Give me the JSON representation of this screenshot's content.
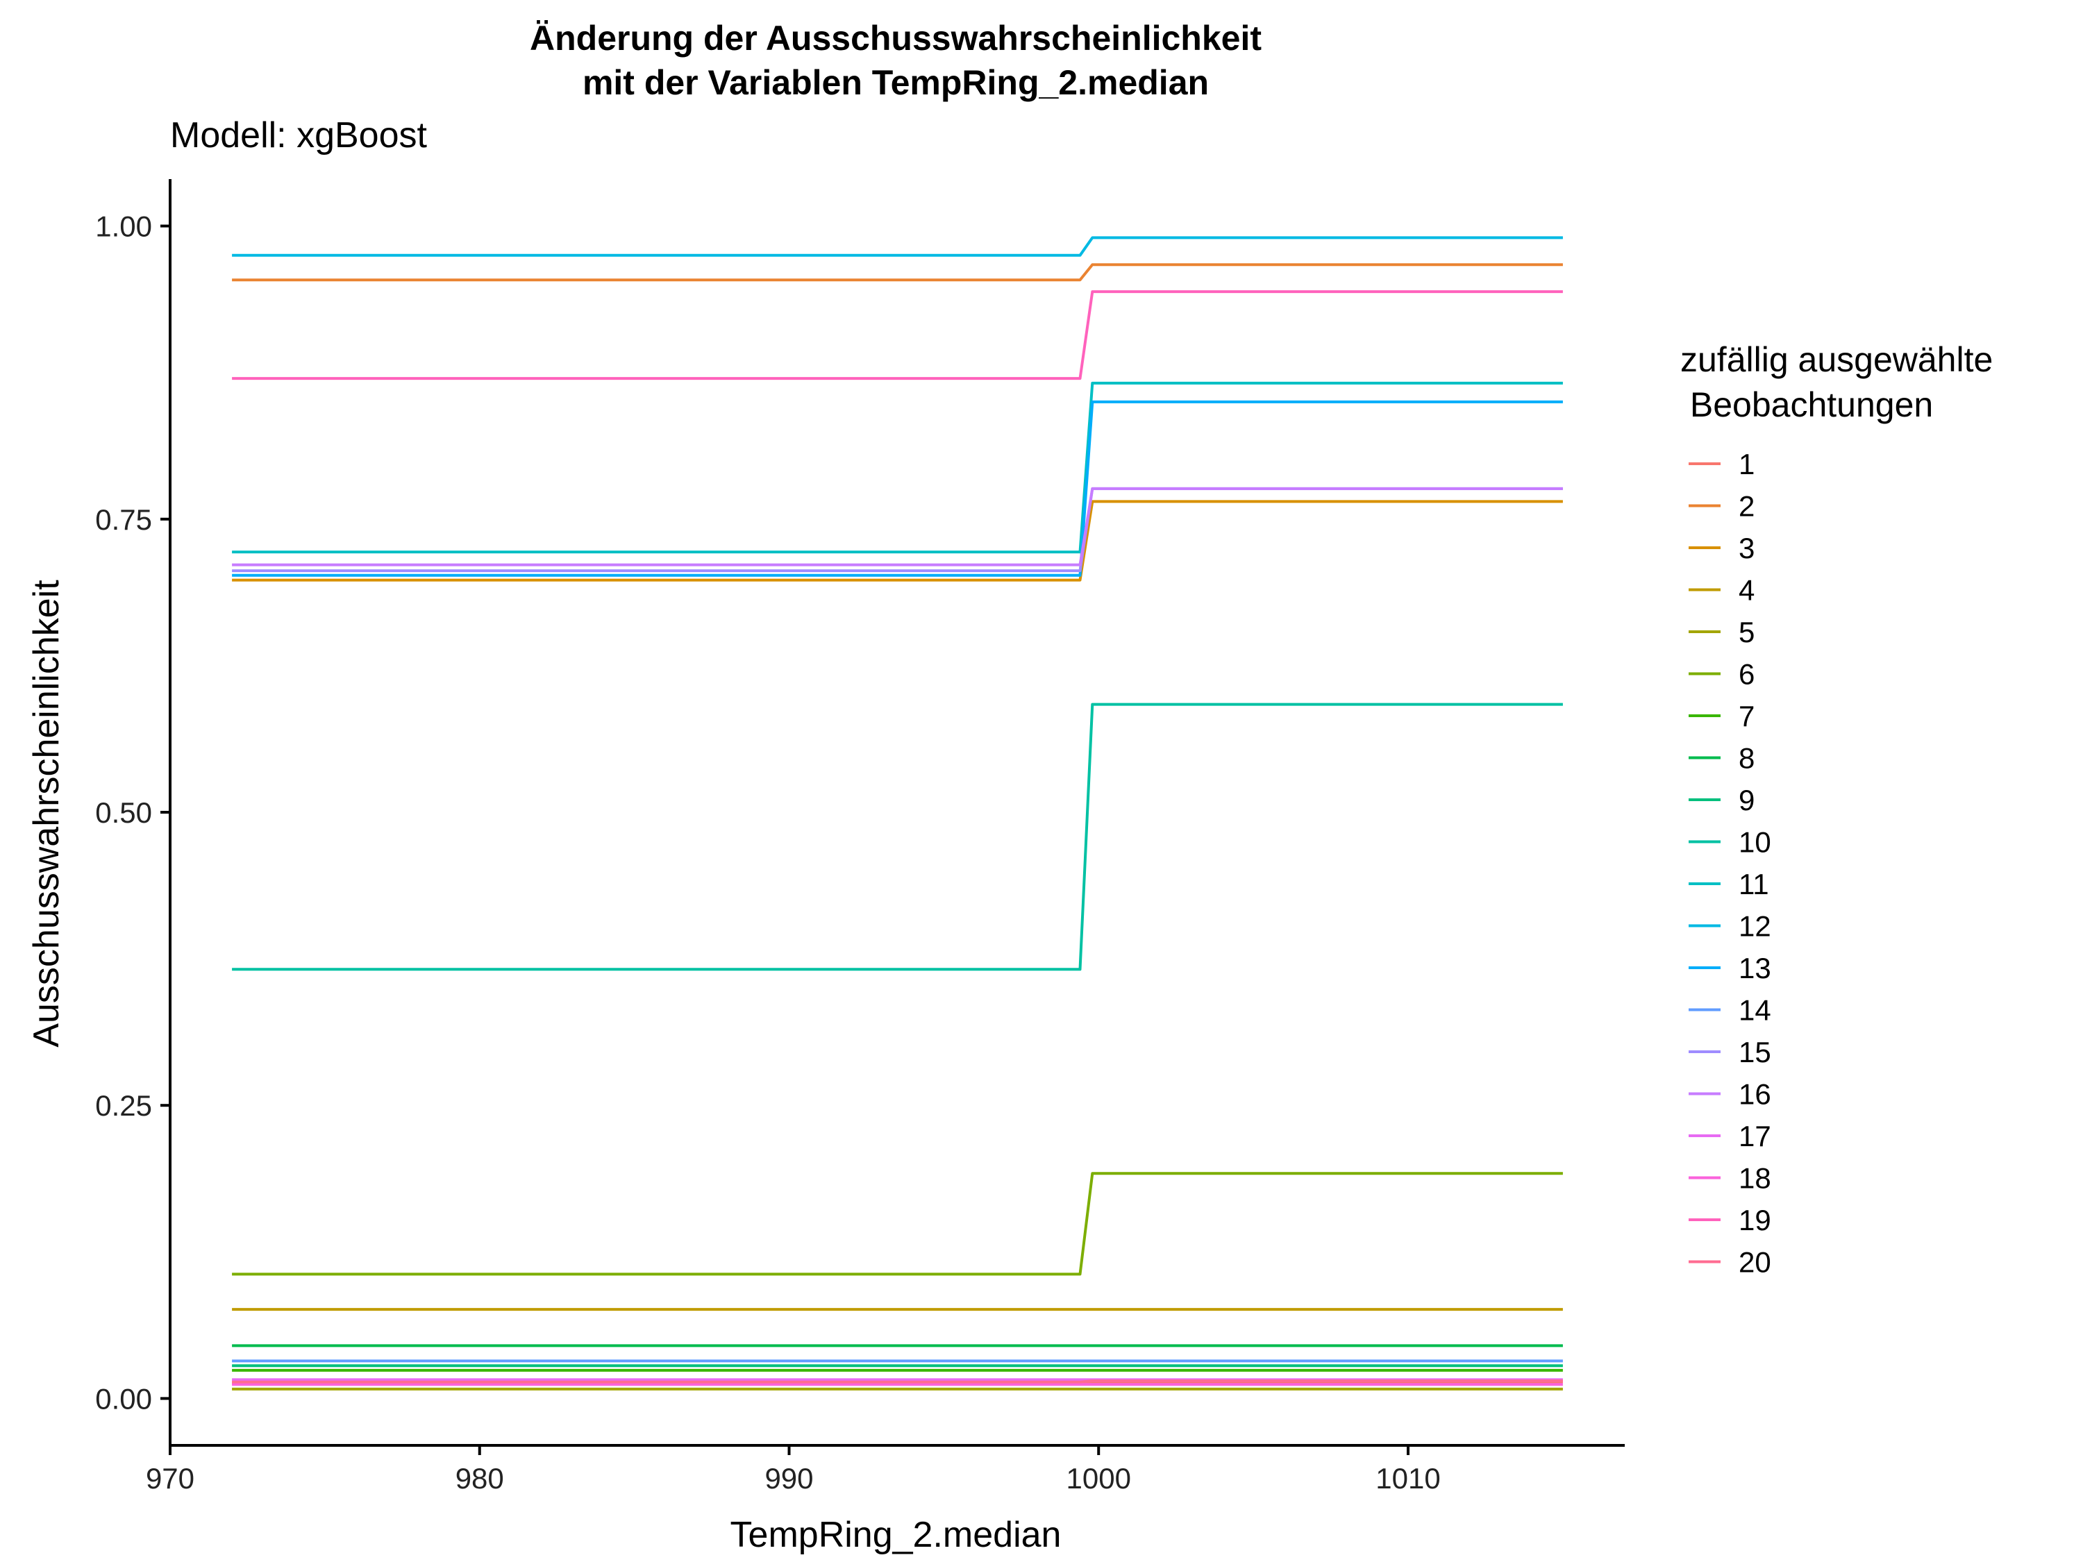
{
  "chart_data": {
    "type": "line",
    "title_line1": "Änderung der Ausschusswahrscheinlichkeit",
    "title_line2": "mit der Variablen TempRing_2.median",
    "subtitle": "Modell: xgBoost",
    "xlabel": "TempRing_2.median",
    "ylabel": "Ausschusswahrscheinlichkeit",
    "xlim": [
      970,
      1017
    ],
    "ylim": [
      -0.04,
      1.04
    ],
    "x_ticks": [
      970,
      980,
      990,
      1000,
      1010
    ],
    "y_ticks": [
      0.0,
      0.25,
      0.5,
      0.75,
      1.0
    ],
    "y_tick_labels": [
      "0.00",
      "0.25",
      "0.50",
      "0.75",
      "1.00"
    ],
    "grid": false,
    "legend_title_line1": "zufällig ausgewählte",
    "legend_title_line2": " Beobachtungen",
    "legend_position": "right",
    "x": [
      972,
      999.4,
      999.8,
      1015
    ],
    "series": [
      {
        "name": "1",
        "color": "#F8766D",
        "values": [
          0.013,
          0.013,
          0.014,
          0.014
        ]
      },
      {
        "name": "2",
        "color": "#EA8331",
        "values": [
          0.954,
          0.954,
          0.967,
          0.967
        ]
      },
      {
        "name": "3",
        "color": "#D89000",
        "values": [
          0.698,
          0.698,
          0.765,
          0.765
        ]
      },
      {
        "name": "4",
        "color": "#C09B00",
        "values": [
          0.076,
          0.076,
          0.076,
          0.076
        ]
      },
      {
        "name": "5",
        "color": "#A3A500",
        "values": [
          0.008,
          0.008,
          0.008,
          0.008
        ]
      },
      {
        "name": "6",
        "color": "#7CAE00",
        "values": [
          0.106,
          0.106,
          0.192,
          0.192
        ]
      },
      {
        "name": "7",
        "color": "#39B600",
        "values": [
          0.024,
          0.024,
          0.024,
          0.024
        ]
      },
      {
        "name": "8",
        "color": "#00BB4E",
        "values": [
          0.045,
          0.045,
          0.045,
          0.045
        ]
      },
      {
        "name": "9",
        "color": "#00BF7D",
        "values": [
          0.028,
          0.028,
          0.028,
          0.028
        ]
      },
      {
        "name": "10",
        "color": "#00C1A3",
        "values": [
          0.366,
          0.366,
          0.592,
          0.592
        ]
      },
      {
        "name": "11",
        "color": "#00BFC4",
        "values": [
          0.722,
          0.722,
          0.866,
          0.866
        ]
      },
      {
        "name": "12",
        "color": "#00B9E3",
        "values": [
          0.975,
          0.975,
          0.99,
          0.99
        ]
      },
      {
        "name": "13",
        "color": "#00ADFA",
        "values": [
          0.702,
          0.702,
          0.85,
          0.85
        ]
      },
      {
        "name": "14",
        "color": "#619CFF",
        "values": [
          0.032,
          0.032,
          0.032,
          0.032
        ]
      },
      {
        "name": "15",
        "color": "#9F8CFF",
        "values": [
          0.706,
          0.706,
          0.776,
          0.776
        ]
      },
      {
        "name": "16",
        "color": "#C77CFF",
        "values": [
          0.711,
          0.711,
          0.776,
          0.776
        ]
      },
      {
        "name": "17",
        "color": "#E76BF3",
        "values": [
          0.016,
          0.016,
          0.016,
          0.016
        ]
      },
      {
        "name": "18",
        "color": "#FA62DB",
        "values": [
          0.012,
          0.012,
          0.012,
          0.012
        ]
      },
      {
        "name": "19",
        "color": "#FF62BC",
        "values": [
          0.87,
          0.87,
          0.944,
          0.944
        ]
      },
      {
        "name": "20",
        "color": "#FF6C91",
        "values": [
          0.014,
          0.014,
          0.015,
          0.015
        ]
      }
    ]
  }
}
